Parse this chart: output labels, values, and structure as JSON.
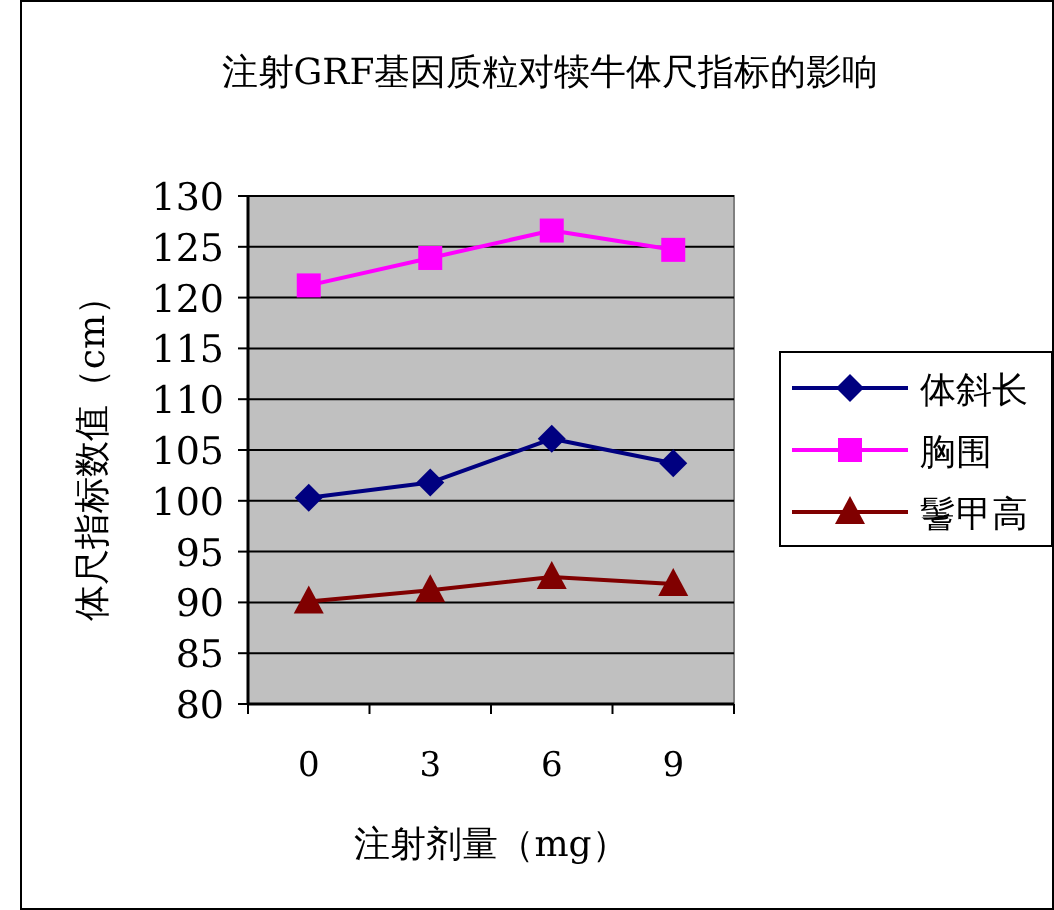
{
  "chart_data": {
    "type": "line",
    "title": "注射GRF基因质粒对犊牛体尺指标的影响",
    "xlabel": "注射剂量（mg）",
    "ylabel": "体尺指标数值（cm）",
    "categories": [
      "0",
      "3",
      "6",
      "9"
    ],
    "series": [
      {
        "name": "体斜长",
        "color": "#000080",
        "marker": "diamond",
        "values": [
          100.3,
          101.8,
          106.1,
          103.7
        ]
      },
      {
        "name": "胸围",
        "color": "#ff00ff",
        "marker": "square",
        "values": [
          121.2,
          123.9,
          126.6,
          124.7
        ]
      },
      {
        "name": "鬐甲高",
        "color": "#800000",
        "marker": "triangle",
        "values": [
          90.1,
          91.2,
          92.5,
          91.8
        ]
      }
    ],
    "ylim": [
      80,
      130
    ],
    "yticks": [
      80,
      85,
      90,
      95,
      100,
      105,
      110,
      115,
      120,
      125,
      130
    ],
    "grid": "y",
    "legend": "right",
    "line_style": "solid"
  }
}
